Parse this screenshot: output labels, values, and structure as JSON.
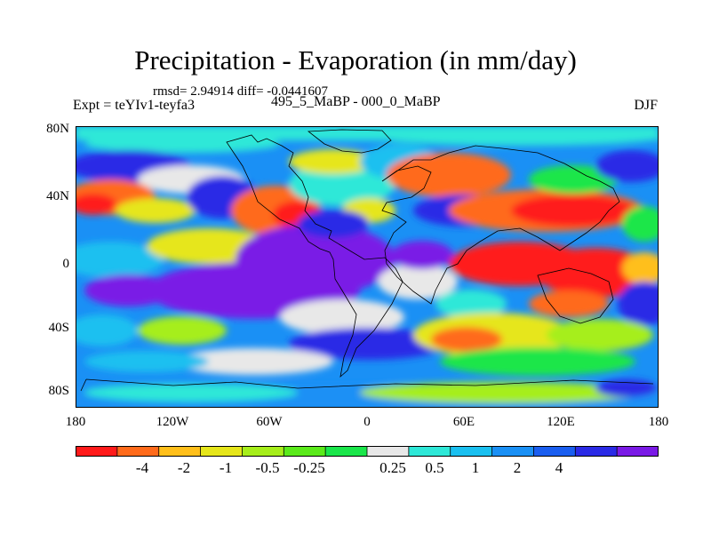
{
  "title": "Precipitation - Evaporation (in mm/day)",
  "stats": "rmsd= 2.94914 diff= -0.0441607",
  "experiment": "Expt = teYIv1-teyfa3",
  "period": "495_5_MaBP - 000_0_MaBP",
  "season": "DJF",
  "y_axis_labels": [
    "80N",
    "40N",
    "0",
    "40S",
    "80S"
  ],
  "x_axis_labels": [
    "180",
    "120W",
    "60W",
    "0",
    "60E",
    "120E",
    "180"
  ],
  "colorbar": {
    "colors": [
      "#ff1a1a",
      "#ff6a1a",
      "#ffbf1a",
      "#e6e61a",
      "#a6ee1a",
      "#5aea1a",
      "#1ae64a",
      "#e8e8e8",
      "#2ee8d8",
      "#1ac0f0",
      "#1a90f5",
      "#1a5ef0",
      "#2a2ae6",
      "#7a1ae6"
    ],
    "labels": [
      "-4",
      "-2",
      "-1",
      "-0.5",
      "-0.25",
      "0.25",
      "0.5",
      "1",
      "2",
      "4"
    ]
  }
}
